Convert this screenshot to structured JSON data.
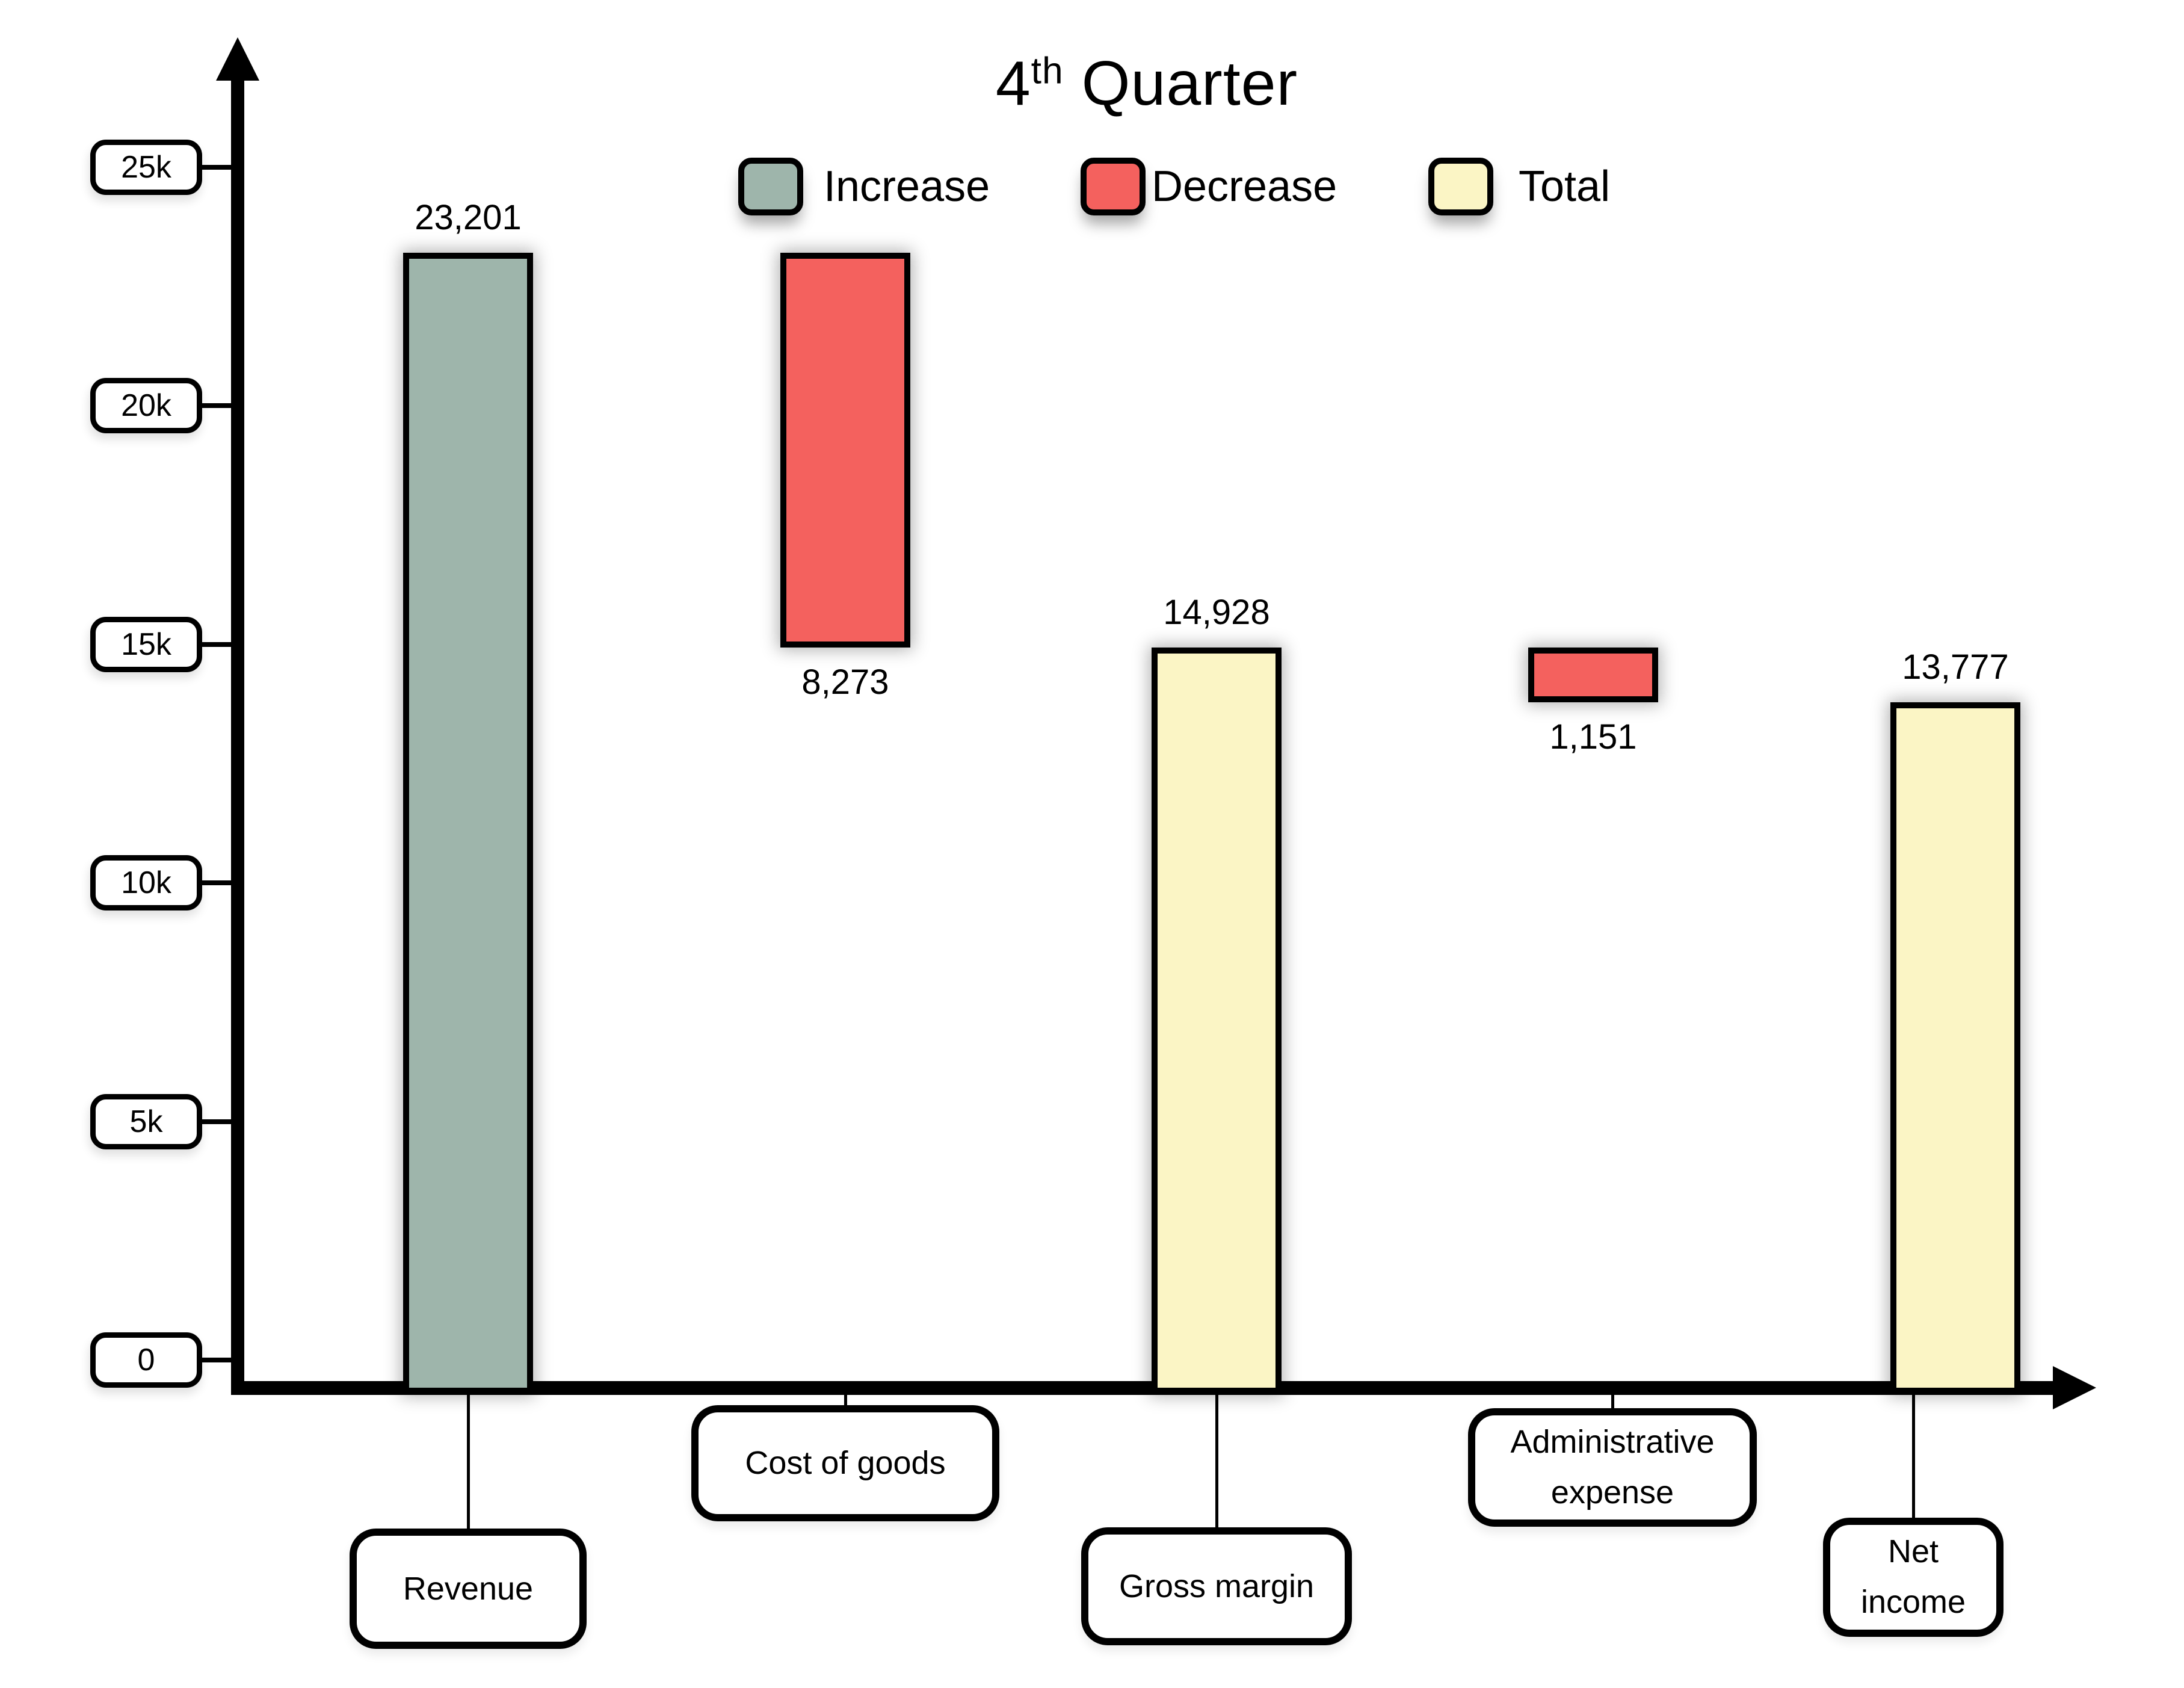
{
  "title": {
    "prefix": "4",
    "superscript": "th",
    "suffix": " Quarter"
  },
  "legend": [
    {
      "label": "Increase",
      "kind": "increase"
    },
    {
      "label": "Decrease",
      "kind": "decrease"
    },
    {
      "label": "Total",
      "kind": "total"
    }
  ],
  "colors": {
    "increase": "#9EB5AB",
    "decrease": "#F4615E",
    "total": "#FBF5C5",
    "axis": "#000000",
    "background": "#FFFFFF"
  },
  "y_axis": {
    "ticks": [
      {
        "label": "0",
        "value": 0
      },
      {
        "label": "5k",
        "value": 5000
      },
      {
        "label": "10k",
        "value": 10000
      },
      {
        "label": "15k",
        "value": 15000
      },
      {
        "label": "20k",
        "value": 20000
      },
      {
        "label": "25k",
        "value": 25000
      }
    ]
  },
  "chart_data": {
    "type": "bar",
    "subtype": "waterfall",
    "title": "4th Quarter",
    "legend_entries": [
      "Increase",
      "Decrease",
      "Total"
    ],
    "legend_position": "top-center",
    "grid": false,
    "ylim": [
      0,
      26000
    ],
    "y_tick_labels": [
      "0",
      "5k",
      "10k",
      "15k",
      "20k",
      "25k"
    ],
    "categories": [
      "Revenue",
      "Cost of goods",
      "Gross margin",
      "Administrative expense",
      "Net income"
    ],
    "bars": [
      {
        "category": "Revenue",
        "category_lines": [
          "Revenue"
        ],
        "kind": "increase",
        "value": 23201,
        "value_label": "23,201",
        "start": 0,
        "end": 23201,
        "value_label_position": "above"
      },
      {
        "category": "Cost of goods",
        "category_lines": [
          "Cost of goods"
        ],
        "kind": "decrease",
        "value": 8273,
        "value_label": "8,273",
        "start": 23201,
        "end": 14928,
        "value_label_position": "below"
      },
      {
        "category": "Gross margin",
        "category_lines": [
          "Gross margin"
        ],
        "kind": "total",
        "value": 14928,
        "value_label": "14,928",
        "start": 0,
        "end": 14928,
        "value_label_position": "above"
      },
      {
        "category": "Administrative expense",
        "category_lines": [
          "Administrative",
          "expense"
        ],
        "kind": "decrease",
        "value": 1151,
        "value_label": "1,151",
        "start": 14928,
        "end": 13777,
        "value_label_position": "below"
      },
      {
        "category": "Net income",
        "category_lines": [
          "Net",
          "income"
        ],
        "kind": "total",
        "value": 13777,
        "value_label": "13,777",
        "start": 0,
        "end": 13777,
        "value_label_position": "above"
      }
    ]
  }
}
